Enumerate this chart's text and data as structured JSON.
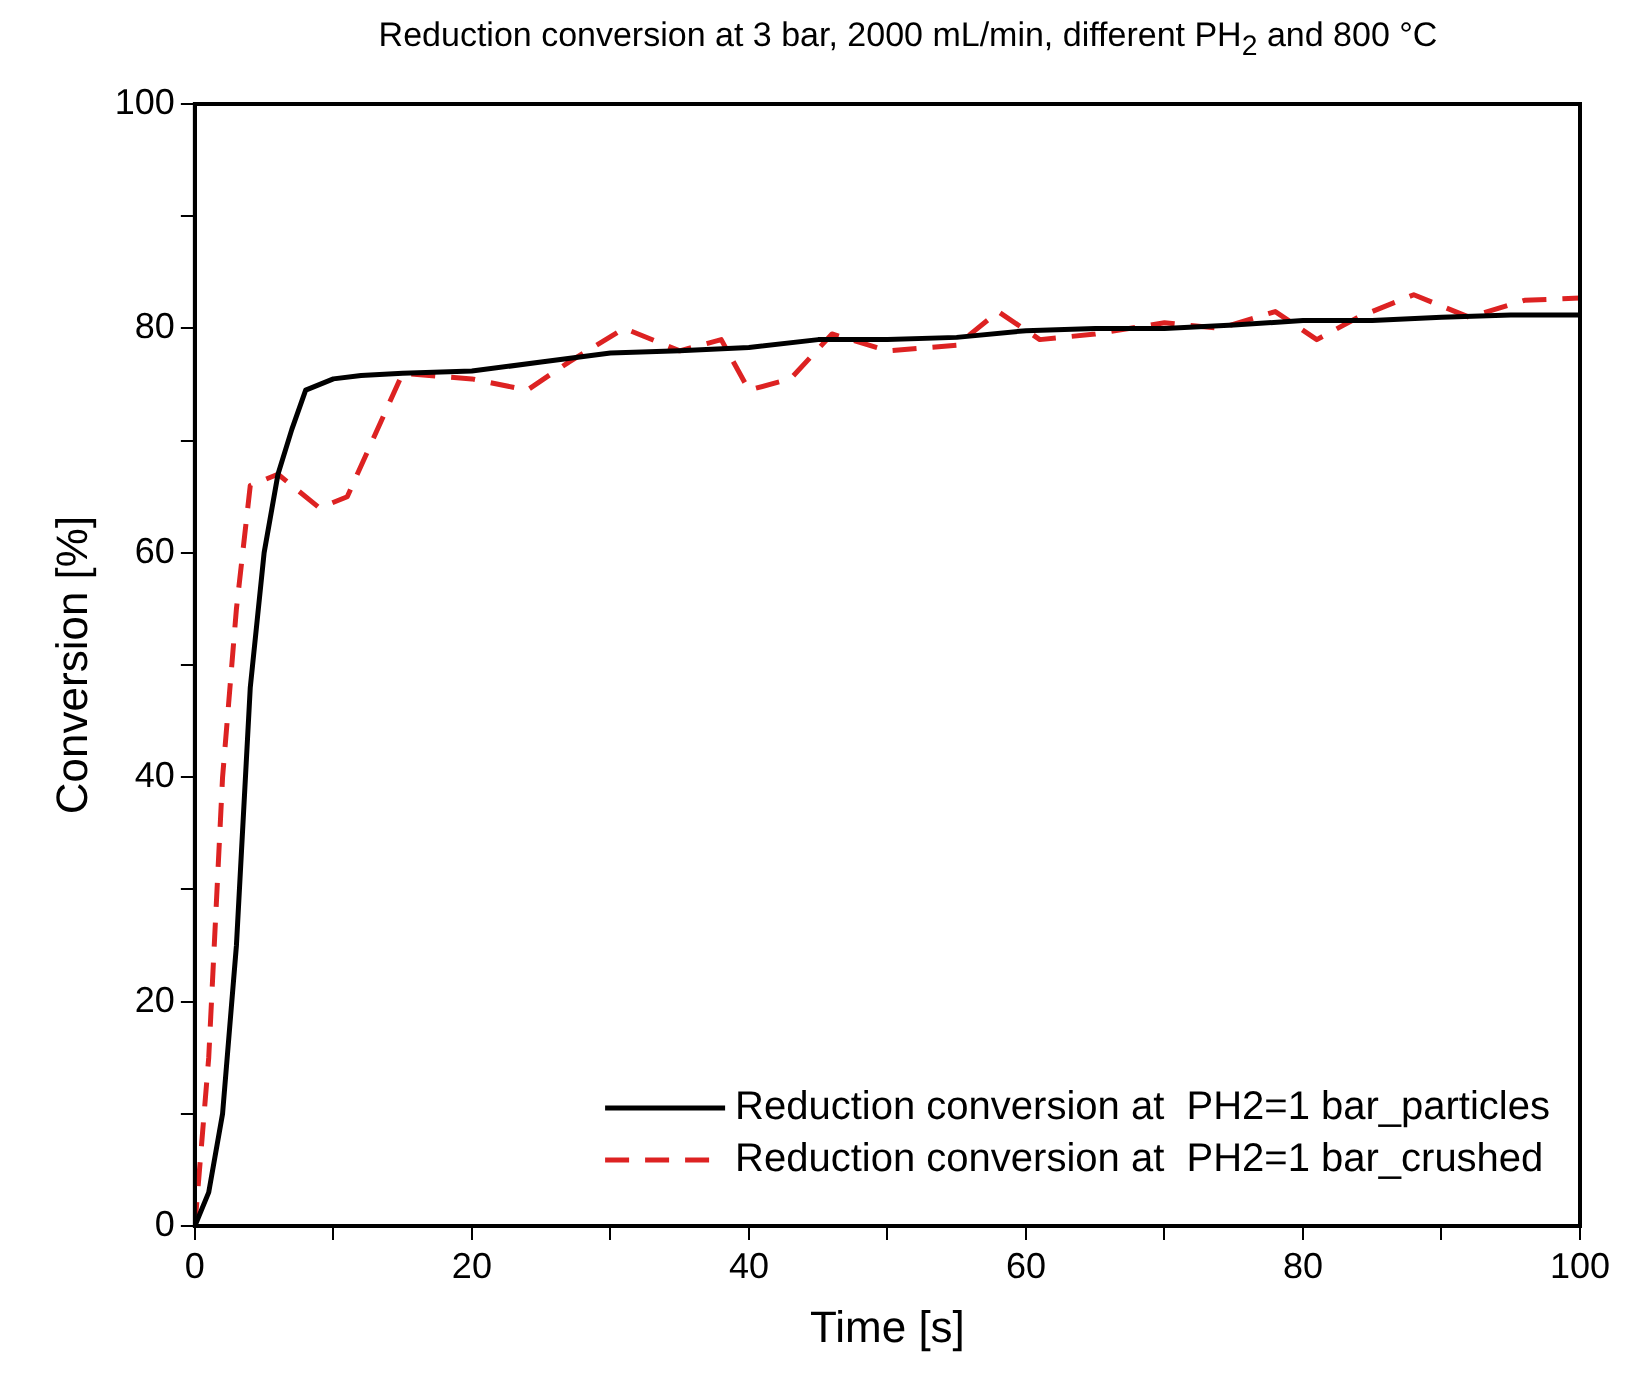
{
  "chart_data": {
    "type": "line",
    "title": "Reduction conversion at 3 bar, 2000 mL/min, different PH$_{2}$ and 800 °C",
    "xlabel": "Time [s]",
    "ylabel": "Conversion [%]",
    "xlim": [
      0,
      100
    ],
    "ylim": [
      0,
      100
    ],
    "xticks": [
      0,
      {
        "value": 10,
        "label": null
      },
      20,
      {
        "value": 30,
        "label": null
      },
      40,
      {
        "value": 50,
        "label": null
      },
      60,
      {
        "value": 70,
        "label": null
      },
      80,
      {
        "value": 90,
        "label": null
      },
      100
    ],
    "yticks": [
      0,
      {
        "value": 10,
        "label": null
      },
      20,
      {
        "value": 30,
        "label": null
      },
      40,
      {
        "value": 50,
        "label": null
      },
      60,
      {
        "value": 70,
        "label": null
      },
      80,
      {
        "value": 90,
        "label": null
      },
      100
    ],
    "grid": false,
    "legend": "bottom right",
    "marker": "none",
    "series": [
      {
        "name": "Reduction conversion at  PH2=1 bar_particles",
        "color": "#000000",
        "line_style": "solid",
        "x": [
          0,
          1,
          2,
          3,
          4,
          5,
          6,
          7,
          8,
          10,
          12,
          15,
          20,
          25,
          30,
          35,
          40,
          45,
          50,
          55,
          60,
          65,
          70,
          75,
          80,
          85,
          90,
          95,
          100
        ],
        "values": [
          0,
          3,
          10,
          25,
          48,
          60,
          67,
          71,
          74.5,
          75.5,
          75.8,
          76,
          76.2,
          77,
          77.8,
          78,
          78.3,
          79,
          79,
          79.2,
          79.8,
          80,
          80,
          80.3,
          80.7,
          80.7,
          81,
          81.2,
          81.2
        ]
      },
      {
        "name": "Reduction conversion at  PH2=1 bar_crushed",
        "color": "#dd2222",
        "line_style": "dashed",
        "x": [
          0,
          1,
          2,
          3,
          4,
          6,
          9,
          11,
          15,
          20,
          24,
          27,
          31,
          35,
          38,
          40,
          43,
          46,
          50,
          55,
          58,
          61,
          65,
          70,
          74,
          78,
          81,
          84,
          88,
          92,
          96,
          100
        ],
        "values": [
          0,
          15,
          40,
          55,
          66,
          67,
          64,
          65,
          76,
          75.5,
          74.5,
          77,
          80,
          78,
          79,
          74.5,
          75.5,
          79.5,
          78,
          78.5,
          81.5,
          79,
          79.5,
          80.5,
          80,
          81.5,
          79,
          81,
          83,
          81,
          82.5,
          82.7
        ]
      }
    ]
  }
}
